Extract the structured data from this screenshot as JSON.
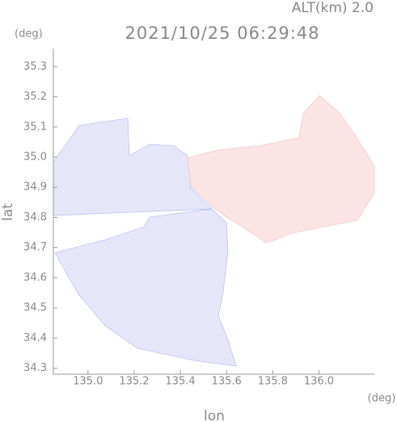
{
  "chart_data": {
    "type": "map",
    "title": "2021/10/25 06:29:48",
    "altitude_label": "ALT(km) 2.0",
    "y_unit": "(deg)",
    "x_unit": "(deg)",
    "x_label": "lon",
    "y_label": "lat",
    "xlim": [
      134.85,
      136.24
    ],
    "ylim": [
      34.28,
      35.36
    ],
    "xticks": [
      {
        "value": 135,
        "label": "135.0"
      },
      135.2,
      135.4,
      135.6,
      135.8,
      {
        "value": 136,
        "label": "136.0"
      }
    ],
    "yticks": [
      34.3,
      34.4,
      34.5,
      34.6,
      34.7,
      34.8,
      34.9,
      {
        "value": 35,
        "label": "35.0"
      },
      35.1,
      35.2,
      35.3
    ]
  }
}
